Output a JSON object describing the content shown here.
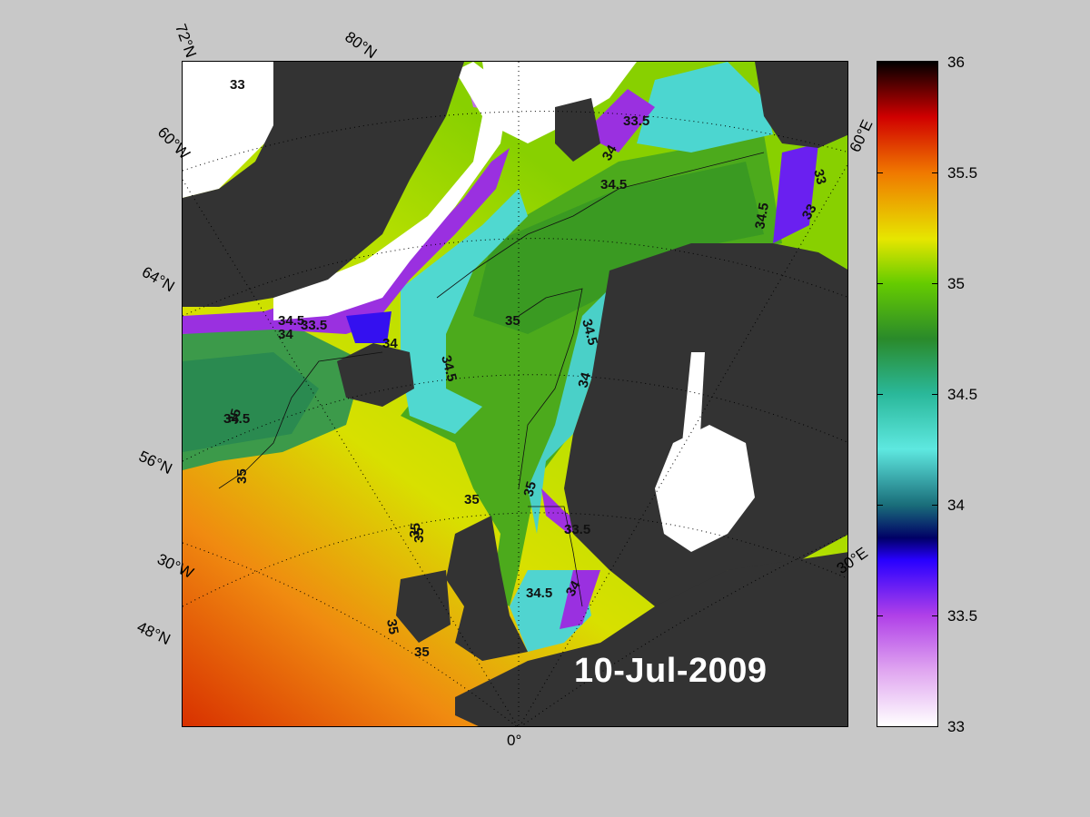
{
  "map": {
    "date": "10-Jul-2009",
    "land_color": "#333333",
    "ice_color": "#ffffff",
    "lat_labels": [
      "72°N",
      "80°N",
      "64°N",
      "56°N",
      "48°N"
    ],
    "lon_labels": [
      "60°W",
      "30°W",
      "0°",
      "30°E",
      "60°E"
    ],
    "contour_labels": [
      "33",
      "33.5",
      "34",
      "34.5",
      "35",
      "34.5",
      "35",
      "35",
      "35",
      "35",
      "35",
      "34.5",
      "34",
      "33.5",
      "34",
      "34.5",
      "34",
      "33",
      "33",
      "34.5",
      "35",
      "34.5",
      "33.5",
      "34",
      "34.5",
      "35",
      "35"
    ]
  },
  "colorbar": {
    "ticks": [
      "36",
      "35.5",
      "35",
      "34.5",
      "34",
      "33.5",
      "33"
    ],
    "min": 33,
    "max": 36,
    "stops": [
      {
        "v": 33.0,
        "c": "#ffffff"
      },
      {
        "v": 33.25,
        "c": "#e0a6f0"
      },
      {
        "v": 33.5,
        "c": "#b040e8"
      },
      {
        "v": 33.75,
        "c": "#2800ff"
      },
      {
        "v": 33.85,
        "c": "#000066"
      },
      {
        "v": 34.0,
        "c": "#1a6e7a"
      },
      {
        "v": 34.25,
        "c": "#5ee8e0"
      },
      {
        "v": 34.5,
        "c": "#2ab89a"
      },
      {
        "v": 34.75,
        "c": "#2a8a2a"
      },
      {
        "v": 35.0,
        "c": "#66cc00"
      },
      {
        "v": 35.2,
        "c": "#e6e600"
      },
      {
        "v": 35.5,
        "c": "#f07800"
      },
      {
        "v": 35.75,
        "c": "#d00000"
      },
      {
        "v": 36.0,
        "c": "#000000"
      }
    ]
  }
}
